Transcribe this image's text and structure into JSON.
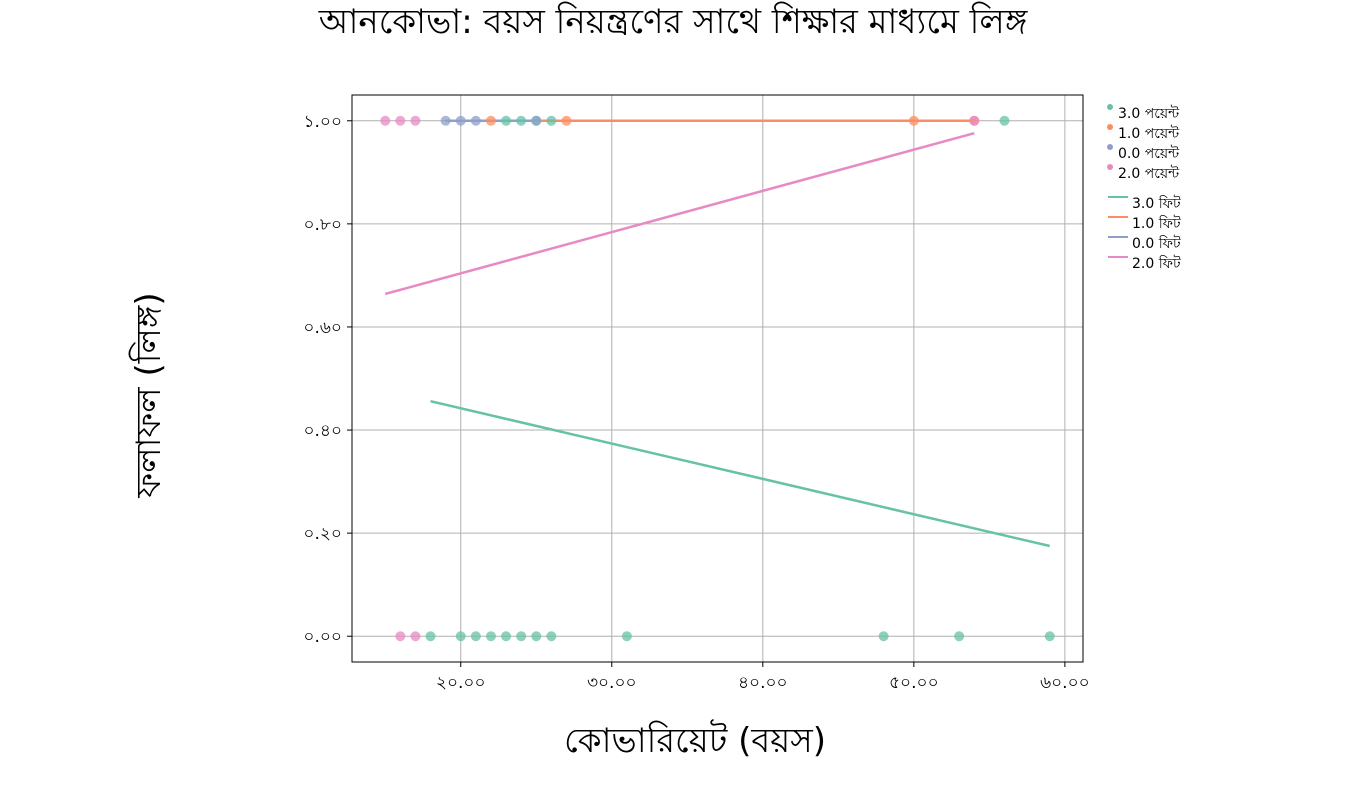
{
  "chart_data": {
    "type": "scatter",
    "title": "আনকোভা: বয়স নিয়ন্ত্রণের সাথে শিক্ষার মাধ্যমে লিঙ্গ",
    "xlabel": "কোভারিয়েট (বয়স)",
    "ylabel": "ফলাফল (লিঙ্গ)",
    "xlim": [
      12.8,
      61.2
    ],
    "ylim": [
      -0.05,
      1.05
    ],
    "xticks": [
      20,
      30,
      40,
      50,
      60
    ],
    "xtick_labels": [
      "২০.০০",
      "৩০.০০",
      "৪০.০০",
      "৫০.০০",
      "৬০.০০"
    ],
    "yticks": [
      0.0,
      0.2,
      0.4,
      0.6,
      0.8,
      1.0
    ],
    "ytick_labels": [
      "০.০০",
      "০.২০",
      "০.৪০",
      "০.৬০",
      "০.৮০",
      "১.০০"
    ],
    "grid": true,
    "legend_position": "outside-top-right",
    "point_series": [
      {
        "name": "3.0 পয়েন্ট",
        "color": "#66c2a5",
        "points": [
          [
            23,
            1
          ],
          [
            24,
            1
          ],
          [
            25,
            1
          ],
          [
            26,
            1
          ],
          [
            56,
            1
          ],
          [
            18,
            0
          ],
          [
            20,
            0
          ],
          [
            21,
            0
          ],
          [
            22,
            0
          ],
          [
            23,
            0
          ],
          [
            24,
            0
          ],
          [
            25,
            0
          ],
          [
            26,
            0
          ],
          [
            31,
            0
          ],
          [
            48,
            0
          ],
          [
            53,
            0
          ],
          [
            59,
            0
          ]
        ]
      },
      {
        "name": "1.0 পয়েন্ট",
        "color": "#fc8d62",
        "points": [
          [
            22,
            1
          ],
          [
            27,
            1
          ],
          [
            50,
            1
          ],
          [
            54,
            1
          ]
        ]
      },
      {
        "name": "0.0 পয়েন্ট",
        "color": "#8da0cb",
        "points": [
          [
            19,
            1
          ],
          [
            20,
            1
          ],
          [
            21,
            1
          ],
          [
            25,
            1
          ]
        ]
      },
      {
        "name": "2.0 পয়েন্ট",
        "color": "#e78ac3",
        "points": [
          [
            15,
            1
          ],
          [
            16,
            1
          ],
          [
            17,
            1
          ],
          [
            54,
            1
          ],
          [
            16,
            0
          ],
          [
            17,
            0
          ]
        ]
      }
    ],
    "line_series": [
      {
        "name": "3.0 ফিট",
        "color": "#66c2a5",
        "x": [
          18,
          59
        ],
        "y": [
          0.456,
          0.175
        ]
      },
      {
        "name": "1.0 ফিট",
        "color": "#fc8d62",
        "x": [
          22,
          54
        ],
        "y": [
          1.0,
          1.0
        ]
      },
      {
        "name": "0.0 ফিট",
        "color": "#8da0cb",
        "x": [
          19,
          25
        ],
        "y": [
          1.0,
          1.0
        ]
      },
      {
        "name": "2.0 ফিট",
        "color": "#e78ac3",
        "x": [
          15,
          54
        ],
        "y": [
          0.664,
          0.976
        ]
      }
    ]
  }
}
